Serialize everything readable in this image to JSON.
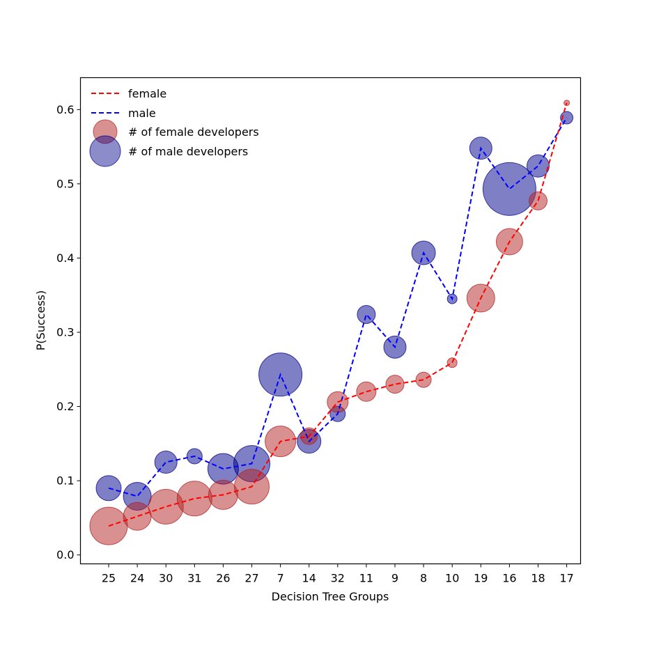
{
  "chart_data": {
    "type": "scatter",
    "title": "",
    "xlabel": "Decision Tree Groups",
    "ylabel": "P(Success)",
    "categories": [
      "25",
      "24",
      "30",
      "31",
      "26",
      "27",
      "7",
      "14",
      "32",
      "11",
      "9",
      "8",
      "10",
      "19",
      "16",
      "18",
      "17"
    ],
    "ylim": [
      -0.012,
      0.643
    ],
    "yticks": [
      "0.0",
      "0.1",
      "0.2",
      "0.3",
      "0.4",
      "0.5",
      "0.6"
    ],
    "grid": false,
    "legend_position": "top-left",
    "series": [
      {
        "name": "female",
        "line_color": "#ff0000",
        "bubble_label": "# of female developers",
        "bubble_color": "#b22222",
        "values": [
          0.039,
          0.052,
          0.065,
          0.076,
          0.081,
          0.092,
          0.153,
          0.16,
          0.206,
          0.22,
          0.23,
          0.236,
          0.259,
          0.346,
          0.422,
          0.477,
          0.609
        ],
        "sizes": [
          27,
          20,
          25,
          25,
          21,
          25,
          22,
          12,
          15,
          14,
          13,
          11,
          7,
          20,
          19,
          13,
          4
        ]
      },
      {
        "name": "male",
        "line_color": "#0000ff",
        "bubble_label": "# of male developers",
        "bubble_color": "#00008b",
        "values": [
          0.09,
          0.079,
          0.125,
          0.133,
          0.116,
          0.123,
          0.243,
          0.153,
          0.19,
          0.324,
          0.28,
          0.407,
          0.345,
          0.548,
          0.493,
          0.524,
          0.589
        ],
        "sizes": [
          18,
          20,
          16,
          11,
          22,
          26,
          31,
          17,
          11,
          13,
          16,
          17,
          7,
          16,
          38,
          16,
          9
        ]
      }
    ]
  }
}
